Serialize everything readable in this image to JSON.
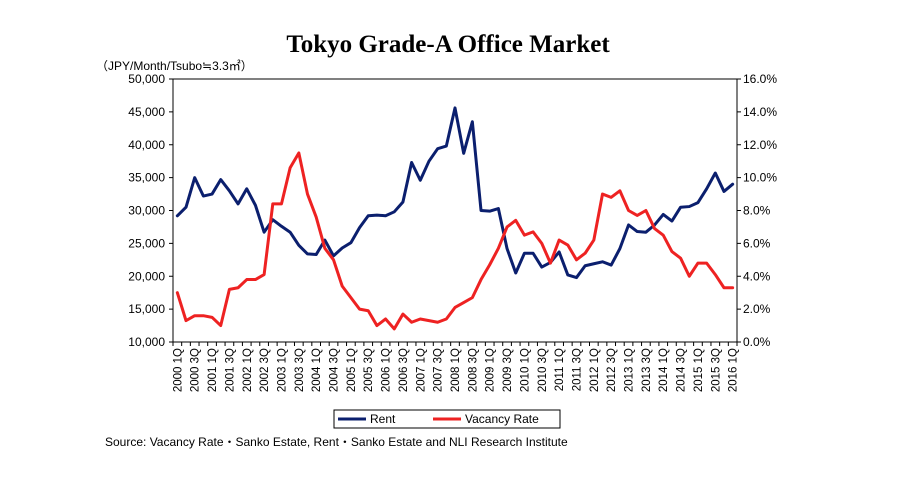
{
  "chart_data": {
    "type": "line",
    "title": "Tokyo Grade-A Office Market",
    "unit_label": "（JPY/Month/Tsubo≒3.3㎡）",
    "source": "Source: Vacancy Rate・Sanko Estate,    Rent・Sanko Estate and NLI Research Institute",
    "x": [
      "2000 1Q",
      "2000 2Q",
      "2000 3Q",
      "2000 4Q",
      "2001 1Q",
      "2001 2Q",
      "2001 3Q",
      "2001 4Q",
      "2002 1Q",
      "2002 2Q",
      "2002 3Q",
      "2002 4Q",
      "2003 1Q",
      "2003 2Q",
      "2003 3Q",
      "2003 4Q",
      "2004 1Q",
      "2004 2Q",
      "2004 3Q",
      "2004 4Q",
      "2005 1Q",
      "2005 2Q",
      "2005 3Q",
      "2005 4Q",
      "2006 1Q",
      "2006 2Q",
      "2006 3Q",
      "2006 4Q",
      "2007 1Q",
      "2007 2Q",
      "2007 3Q",
      "2007 4Q",
      "2008 1Q",
      "2008 2Q",
      "2008 3Q",
      "2008 4Q",
      "2009 1Q",
      "2009 2Q",
      "2009 3Q",
      "2009 4Q",
      "2010 1Q",
      "2010 2Q",
      "2010 3Q",
      "2010 4Q",
      "2011 1Q",
      "2011 2Q",
      "2011 3Q",
      "2011 4Q",
      "2012 1Q",
      "2012 2Q",
      "2012 3Q",
      "2012 4Q",
      "2013 1Q",
      "2013 2Q",
      "2013 3Q",
      "2013 4Q",
      "2014 1Q",
      "2014 2Q",
      "2014 3Q",
      "2014 4Q",
      "2015 1Q",
      "2015 2Q",
      "2015 3Q",
      "2015 4Q",
      "2016 1Q"
    ],
    "x_tick_labels": [
      "2000 1Q",
      "2000 3Q",
      "2001 1Q",
      "2001 3Q",
      "2002 1Q",
      "2002 3Q",
      "2003 1Q",
      "2003 3Q",
      "2004 1Q",
      "2004 3Q",
      "2005 1Q",
      "2005 3Q",
      "2006 1Q",
      "2006 3Q",
      "2007 1Q",
      "2007 3Q",
      "2008 1Q",
      "2008 3Q",
      "2009 1Q",
      "2009 3Q",
      "2010 1Q",
      "2010 3Q",
      "2011 1Q",
      "2011 3Q",
      "2012 1Q",
      "2012 3Q",
      "2013 1Q",
      "2013 3Q",
      "2014 1Q",
      "2014 3Q",
      "2015 1Q",
      "2015 3Q",
      "2016 1Q"
    ],
    "y_left": {
      "min": 10000,
      "max": 50000,
      "step": 5000,
      "ticks": [
        "10,000",
        "15,000",
        "20,000",
        "25,000",
        "30,000",
        "35,000",
        "40,000",
        "45,000",
        "50,000"
      ]
    },
    "y_right": {
      "min": 0,
      "max": 16,
      "step": 2,
      "ticks": [
        "0.0%",
        "2.0%",
        "4.0%",
        "6.0%",
        "8.0%",
        "10.0%",
        "12.0%",
        "14.0%",
        "16.0%"
      ]
    },
    "grid": false,
    "legend_position": "bottom",
    "series": [
      {
        "name": "Rent",
        "axis": "left",
        "color": "#0b1f6e",
        "values": [
          29200,
          30500,
          35000,
          32200,
          32500,
          34700,
          33000,
          31000,
          33300,
          30800,
          26700,
          28600,
          27600,
          26700,
          24700,
          23400,
          23300,
          25500,
          23100,
          24300,
          25100,
          27400,
          29200,
          29300,
          29200,
          29800,
          31300,
          37300,
          34600,
          37500,
          39400,
          39800,
          45600,
          38700,
          43500,
          30000,
          29900,
          30300,
          24200,
          20500,
          23500,
          23500,
          21400,
          22100,
          23700,
          20200,
          19800,
          21600,
          21900,
          22200,
          21700,
          24200,
          27800,
          26800,
          26700,
          27800,
          29400,
          28400,
          30500,
          30600,
          31200,
          33300,
          35700,
          32900,
          34000
        ]
      },
      {
        "name": "Vacancy Rate",
        "axis": "right",
        "color": "#ee2222",
        "values": [
          3.0,
          1.3,
          1.6,
          1.6,
          1.5,
          1.0,
          3.2,
          3.3,
          3.8,
          3.8,
          4.1,
          8.4,
          8.4,
          10.6,
          11.5,
          9.0,
          7.6,
          5.7,
          5.0,
          3.4,
          2.7,
          2.0,
          1.9,
          1.0,
          1.4,
          0.8,
          1.7,
          1.2,
          1.4,
          1.3,
          1.2,
          1.4,
          2.1,
          2.4,
          2.7,
          3.8,
          4.7,
          5.7,
          7.0,
          7.4,
          6.5,
          6.7,
          6.0,
          4.8,
          6.2,
          5.9,
          5.0,
          5.4,
          6.2,
          9.0,
          8.8,
          9.2,
          8.0,
          7.7,
          8.0,
          6.9,
          6.5,
          5.5,
          5.1,
          4.0,
          4.8,
          4.8,
          4.1,
          3.3,
          3.3
        ]
      }
    ]
  }
}
